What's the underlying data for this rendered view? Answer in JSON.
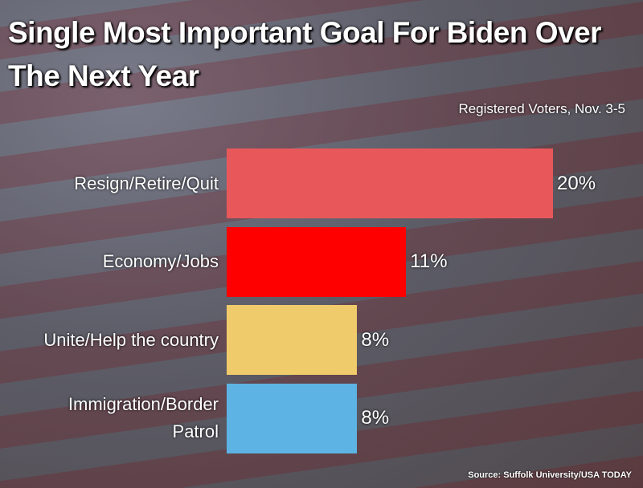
{
  "chart_data": {
    "type": "bar",
    "orientation": "horizontal",
    "title": "Single Most Important Goal For Biden Over The Next Year",
    "subtitle": "Registered Voters, Nov. 3-5",
    "source": "Source: Suffolk University/USA TODAY",
    "categories": [
      "Resign/Retire/Quit",
      "Economy/Jobs",
      "Unite/Help the country",
      "Immigration/Border Patrol"
    ],
    "values": [
      20,
      11,
      8,
      8
    ],
    "value_labels": [
      "20%",
      "11%",
      "8%",
      "8%"
    ],
    "colors": [
      "#e8585a",
      "#ff0000",
      "#f0cb6c",
      "#5db3e4"
    ]
  }
}
